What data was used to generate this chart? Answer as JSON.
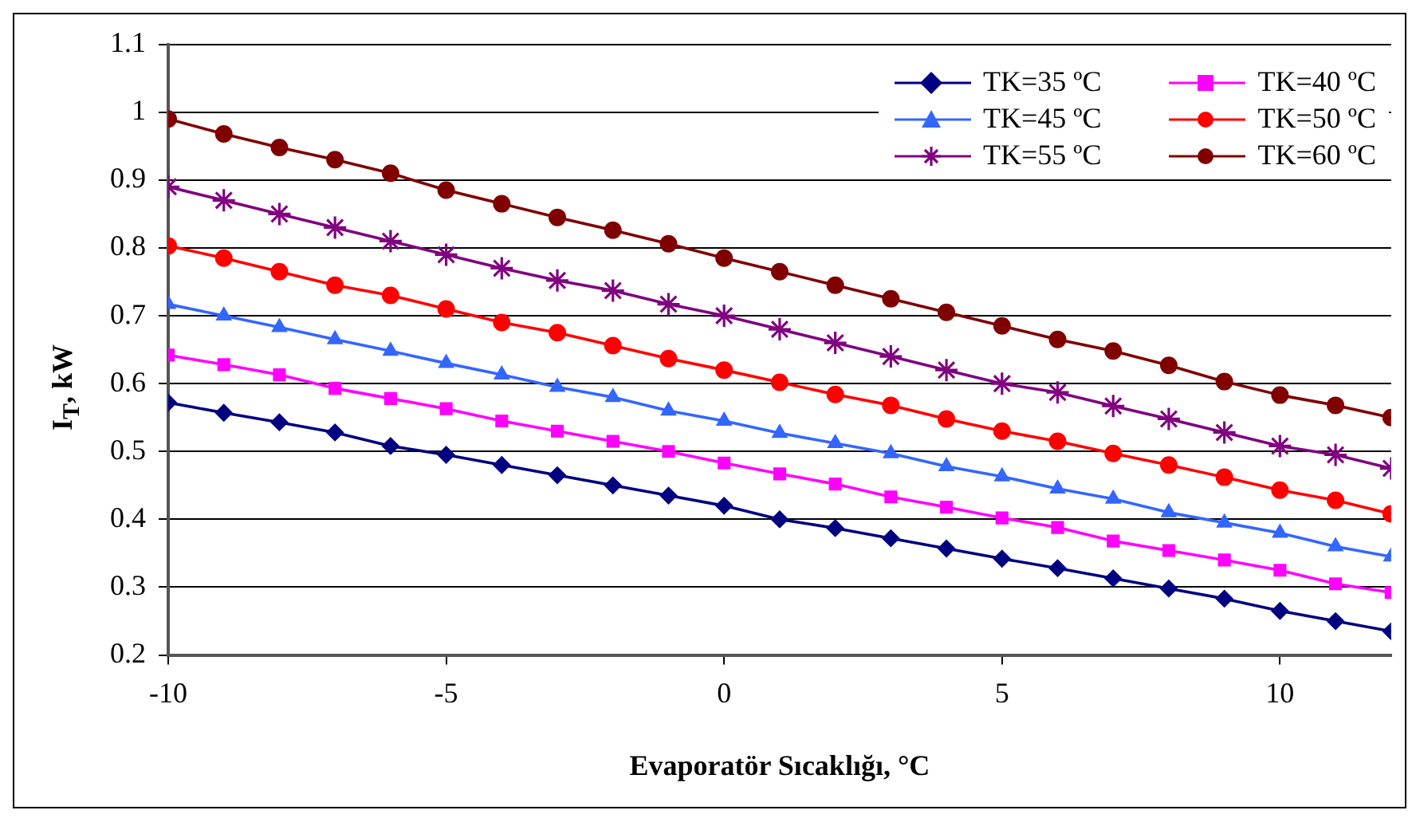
{
  "chart_data": {
    "type": "line",
    "xlabel": "Evaporatör Sıcaklığı, °C",
    "ylabel": "I$_{T}$, kW",
    "x": [
      -10,
      -9,
      -8,
      -7,
      -6,
      -5,
      -4,
      -3,
      -2,
      -1,
      0,
      1,
      2,
      3,
      4,
      5,
      6,
      7,
      8,
      9,
      10,
      11,
      12
    ],
    "series": [
      {
        "name": "TK=35 ºC",
        "color": "#000080",
        "marker": "diamond",
        "values": [
          0.572,
          0.557,
          0.543,
          0.528,
          0.508,
          0.495,
          0.48,
          0.465,
          0.45,
          0.435,
          0.42,
          0.4,
          0.387,
          0.372,
          0.357,
          0.342,
          0.328,
          0.313,
          0.298,
          0.283,
          0.265,
          0.25,
          0.235
        ]
      },
      {
        "name": "TK=40 ºC",
        "color": "#ff00ff",
        "marker": "square",
        "values": [
          0.642,
          0.628,
          0.613,
          0.593,
          0.578,
          0.563,
          0.545,
          0.53,
          0.515,
          0.5,
          0.483,
          0.467,
          0.452,
          0.433,
          0.418,
          0.402,
          0.388,
          0.368,
          0.354,
          0.34,
          0.325,
          0.305,
          0.292
        ]
      },
      {
        "name": "TK=45 ºC",
        "color": "#3366ff",
        "marker": "triangle",
        "values": [
          0.717,
          0.7,
          0.683,
          0.665,
          0.648,
          0.63,
          0.613,
          0.595,
          0.58,
          0.56,
          0.545,
          0.527,
          0.512,
          0.497,
          0.478,
          0.463,
          0.445,
          0.43,
          0.41,
          0.395,
          0.38,
          0.36,
          0.345
        ]
      },
      {
        "name": "TK=50 ºC",
        "color": "#ff0000",
        "marker": "circle",
        "values": [
          0.803,
          0.785,
          0.765,
          0.745,
          0.73,
          0.71,
          0.69,
          0.675,
          0.656,
          0.637,
          0.62,
          0.602,
          0.584,
          0.568,
          0.548,
          0.53,
          0.515,
          0.497,
          0.48,
          0.462,
          0.443,
          0.428,
          0.408
        ]
      },
      {
        "name": "TK=55 ºC",
        "color": "#800080",
        "marker": "cross",
        "values": [
          0.89,
          0.87,
          0.85,
          0.83,
          0.81,
          0.79,
          0.77,
          0.752,
          0.737,
          0.717,
          0.7,
          0.68,
          0.66,
          0.64,
          0.62,
          0.6,
          0.587,
          0.567,
          0.548,
          0.528,
          0.508,
          0.495,
          0.475
        ]
      },
      {
        "name": "TK=60 ºC",
        "color": "#800000",
        "marker": "circle",
        "values": [
          0.99,
          0.968,
          0.948,
          0.93,
          0.91,
          0.885,
          0.865,
          0.845,
          0.826,
          0.806,
          0.785,
          0.765,
          0.745,
          0.725,
          0.705,
          0.685,
          0.665,
          0.648,
          0.627,
          0.603,
          0.583,
          0.568,
          0.55
        ]
      }
    ],
    "xlim": [
      -10,
      12
    ],
    "xticks": [
      -10,
      -5,
      0,
      5,
      10
    ],
    "ylim": [
      0.2,
      1.1
    ],
    "yticks": [
      0.2,
      0.3,
      0.4,
      0.5,
      0.6,
      0.7,
      0.8,
      0.9,
      1,
      1.1
    ],
    "grid": "y",
    "legend": "top right",
    "line_style": "solid"
  }
}
